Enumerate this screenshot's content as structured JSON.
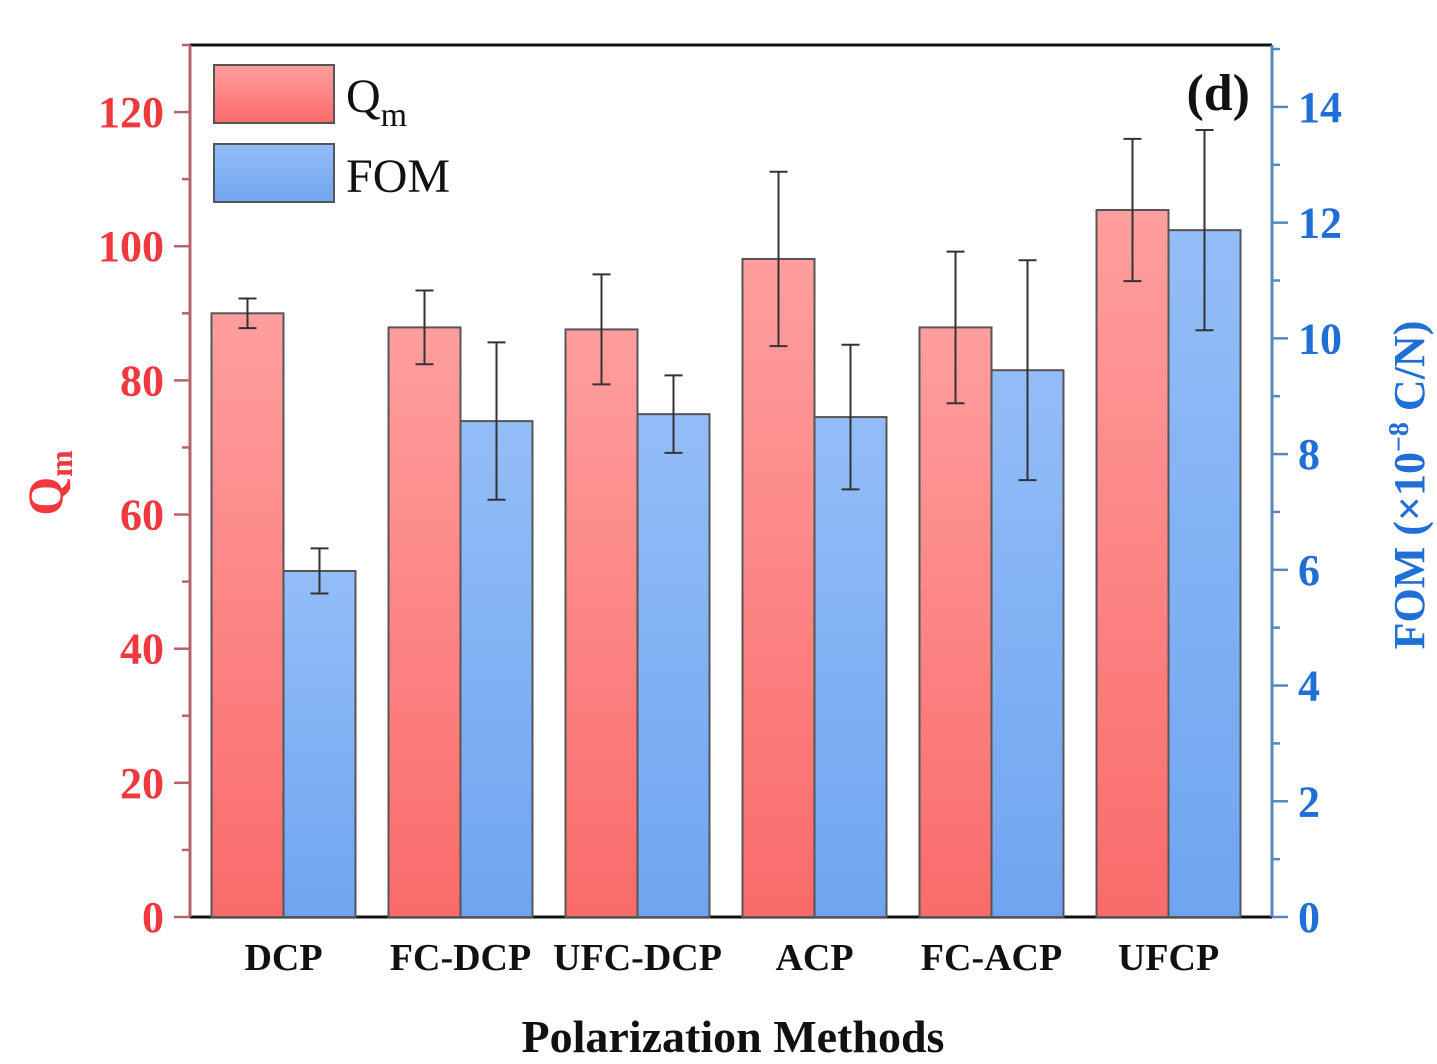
{
  "chart_data": {
    "type": "bar",
    "title": "",
    "panel_label": "(d)",
    "xlabel": "Polarization Methods",
    "ylabel_left": {
      "main": "Q",
      "sub": "m"
    },
    "ylabel_right": {
      "prefix": "FOM (×10",
      "sup": "−8",
      "suffix": " C/N)"
    },
    "categories": [
      "DCP",
      "FC-DCP",
      "UFC-DCP",
      "ACP",
      "FC-ACP",
      "UFCP"
    ],
    "series": [
      {
        "name": "Qm",
        "legend_main": "Q",
        "legend_sub": "m",
        "axis": "left",
        "values": [
          90.0,
          87.9,
          87.6,
          98.1,
          87.9,
          105.4
        ],
        "errors": [
          2.2,
          5.5,
          8.2,
          13.0,
          11.3,
          10.6
        ],
        "color_top": "#ff9e9e",
        "color_bottom": "#fa6b6b"
      },
      {
        "name": "FOM",
        "legend_main": "FOM",
        "legend_sub": "",
        "axis": "right",
        "values": [
          5.98,
          8.57,
          8.69,
          8.64,
          9.45,
          11.87
        ],
        "errors": [
          0.39,
          1.36,
          0.67,
          1.25,
          1.9,
          1.73
        ],
        "color_top": "#93bdf7",
        "color_bottom": "#6fa5f0"
      }
    ],
    "y_left": {
      "range": [
        0,
        130
      ],
      "ticks": [
        0,
        20,
        40,
        60,
        80,
        100,
        120
      ],
      "minor_step": 10,
      "color": "#f0393f",
      "axis_color": "#b5636a"
    },
    "y_right": {
      "range": [
        0,
        15.07
      ],
      "ticks": [
        0,
        2,
        4,
        6,
        8,
        10,
        12,
        14
      ],
      "minor_step": 1,
      "color": "#1f6fd6",
      "axis_color": "#5a86c0"
    },
    "grid": false,
    "legend_position": "top-left"
  }
}
